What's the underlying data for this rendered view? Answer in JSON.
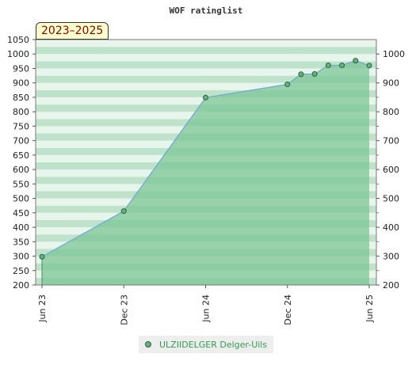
{
  "title": "WOF ratinglist",
  "period_badge": "2023–2025",
  "colors": {
    "area_fill": "#7cc595",
    "line": "#6fa7d9",
    "marker": "#5cb87a",
    "legend_text": "#2e9d4d",
    "band_light": "#e8f5ec",
    "band_dark": "#bfe3ca"
  },
  "chart_data": {
    "type": "area",
    "title": "WOF ratinglist",
    "xlabel": "",
    "ylabel": "",
    "x_ticks": [
      "Jun 23",
      "Dec 23",
      "Jun 24",
      "Dec 24",
      "Jun 25"
    ],
    "y_left_ticks": [
      200,
      250,
      300,
      350,
      400,
      450,
      500,
      550,
      600,
      650,
      700,
      750,
      800,
      850,
      900,
      950,
      1000,
      1050
    ],
    "y_right_ticks": [
      200,
      300,
      400,
      500,
      600,
      700,
      800,
      900,
      1000
    ],
    "ylim": [
      200,
      1050
    ],
    "grid": "horizontal bands",
    "legend_position": "bottom",
    "series": [
      {
        "name": "ULZIIDELGER Delger-Uils",
        "points": [
          {
            "x": "2023-06",
            "y": 298
          },
          {
            "x": "2023-12",
            "y": 456
          },
          {
            "x": "2024-06",
            "y": 849
          },
          {
            "x": "2024-12",
            "y": 895
          },
          {
            "x": "2025-01",
            "y": 930
          },
          {
            "x": "2025-02",
            "y": 931
          },
          {
            "x": "2025-03",
            "y": 961
          },
          {
            "x": "2025-04",
            "y": 961
          },
          {
            "x": "2025-05",
            "y": 977
          },
          {
            "x": "2025-06",
            "y": 960
          }
        ]
      }
    ]
  }
}
